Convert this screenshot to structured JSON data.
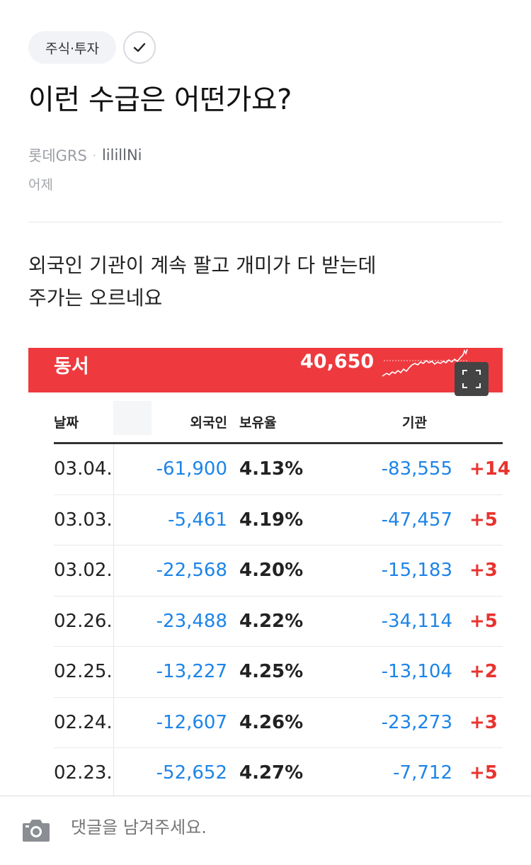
{
  "topic": {
    "label": "주식·투자"
  },
  "post": {
    "title": "이런 수급은 어떤가요?",
    "board": "롯데GRS",
    "author": "lilillNi",
    "date": "어제",
    "body_line1": "외국인 기관이 계속 팔고 개미가 다 받는데",
    "body_line2": "주가는 오르네요"
  },
  "stock": {
    "name": "동서",
    "price": "40,650",
    "columns": {
      "date": "날짜",
      "foreign": "외국인",
      "ratio": "보유율",
      "institution": "기관"
    },
    "rows": [
      {
        "date": "03.04.",
        "foreign": "-61,900",
        "ratio": "4.13%",
        "institution": "-83,555",
        "individual": "+14"
      },
      {
        "date": "03.03.",
        "foreign": "-5,461",
        "ratio": "4.19%",
        "institution": "-47,457",
        "individual": "+5"
      },
      {
        "date": "03.02.",
        "foreign": "-22,568",
        "ratio": "4.20%",
        "institution": "-15,183",
        "individual": "+3"
      },
      {
        "date": "02.26.",
        "foreign": "-23,488",
        "ratio": "4.22%",
        "institution": "-34,114",
        "individual": "+5"
      },
      {
        "date": "02.25.",
        "foreign": "-13,227",
        "ratio": "4.25%",
        "institution": "-13,104",
        "individual": "+2"
      },
      {
        "date": "02.24.",
        "foreign": "-12,607",
        "ratio": "4.26%",
        "institution": "-23,273",
        "individual": "+3"
      },
      {
        "date": "02.23.",
        "foreign": "-52,652",
        "ratio": "4.27%",
        "institution": "-7,712",
        "individual": "+5"
      }
    ],
    "colors": {
      "header": "#ee3a3f",
      "negative": "#1d84e8",
      "positive": "#e8332f"
    }
  },
  "comment": {
    "placeholder": "댓글을 남겨주세요."
  },
  "icons": {
    "check": "check-icon",
    "expand": "expand-icon",
    "camera": "camera-icon"
  }
}
